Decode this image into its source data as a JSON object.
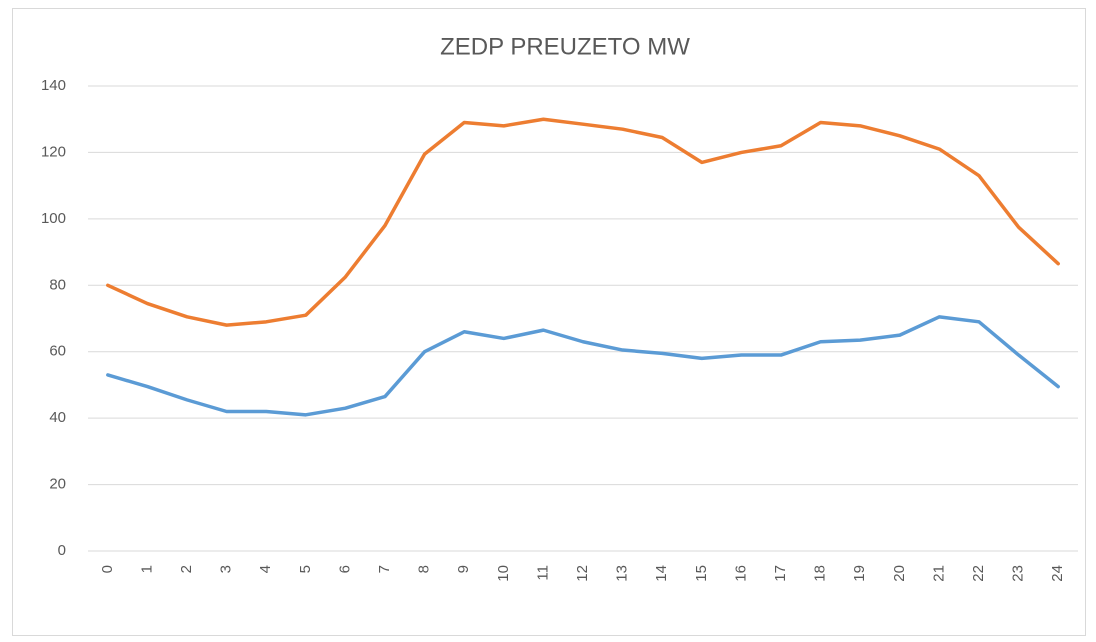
{
  "chart_data": {
    "type": "line",
    "title": "ZEDP PREUZETO MW",
    "categories": [
      "0",
      "1",
      "2",
      "3",
      "4",
      "5",
      "6",
      "7",
      "8",
      "9",
      "10",
      "11",
      "12",
      "13",
      "14",
      "15",
      "16",
      "17",
      "18",
      "19",
      "20",
      "21",
      "22",
      "23",
      "24"
    ],
    "series": [
      {
        "color": "#ed7d31",
        "values": [
          80,
          74.5,
          70.5,
          68,
          69,
          71,
          82.5,
          98,
          119.5,
          129,
          128,
          130,
          128.5,
          127,
          124.5,
          117,
          120,
          122,
          129,
          128,
          125,
          121,
          113,
          97.5,
          86.5
        ]
      },
      {
        "color": "#5b9bd5",
        "values": [
          53,
          49.5,
          45.5,
          42,
          42,
          41,
          43,
          46.5,
          60,
          66,
          64,
          66.5,
          63,
          60.5,
          59.5,
          58,
          59,
          59,
          63,
          63.5,
          65,
          70.5,
          69,
          59,
          49.5
        ]
      }
    ],
    "ylim": [
      0,
      140
    ],
    "yticks": [
      0,
      20,
      40,
      60,
      80,
      100,
      120,
      140
    ],
    "grid": true
  }
}
